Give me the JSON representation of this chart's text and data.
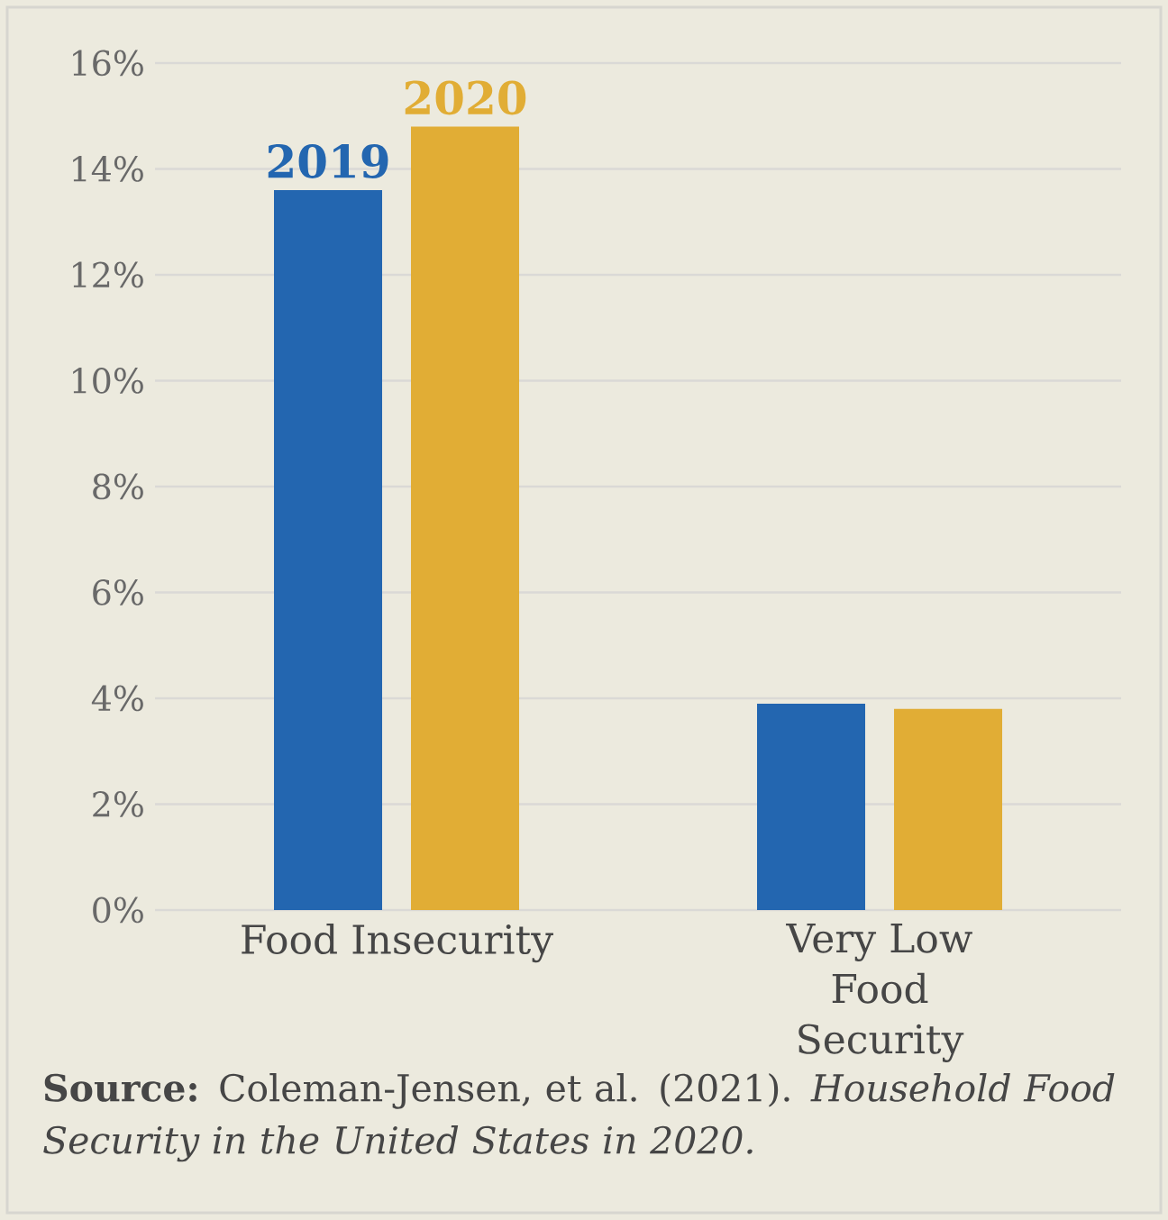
{
  "chart_data": {
    "type": "bar",
    "categories": [
      "Food Insecurity",
      "Very Low Food Security"
    ],
    "series": [
      {
        "name": "2019",
        "color": "#2366b0",
        "values": [
          13.6,
          3.9
        ]
      },
      {
        "name": "2020",
        "color": "#e1ad35",
        "values": [
          14.8,
          3.8
        ]
      }
    ],
    "ylim": [
      0,
      16
    ],
    "yticks": [
      {
        "value": 0,
        "label": "0%"
      },
      {
        "value": 2,
        "label": "2%"
      },
      {
        "value": 4,
        "label": "4%"
      },
      {
        "value": 6,
        "label": "6%"
      },
      {
        "value": 8,
        "label": "8%"
      },
      {
        "value": 10,
        "label": "10%"
      },
      {
        "value": 12,
        "label": "12%"
      },
      {
        "value": 14,
        "label": "14%"
      },
      {
        "value": 16,
        "label": "16%"
      }
    ],
    "grid": "y",
    "annotations": [
      "**Source:** Coleman-Jensen, et al. (2021). *Household Food Security in the United States in 2020.*"
    ]
  }
}
